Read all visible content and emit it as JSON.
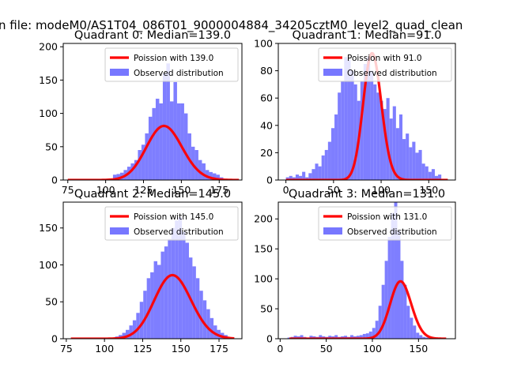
{
  "figure": {
    "suptitle": "n file: modeM0/AS1T04_086T01_9000004884_34205cztM0_level2_quad_clean"
  },
  "chart_data": [
    {
      "type": "bar",
      "title": "Quadrant 0: Median=139.0",
      "xlim": [
        72,
        190
      ],
      "ylim": [
        0,
        205
      ],
      "xticks": [
        75,
        100,
        125,
        150,
        175
      ],
      "yticks": [
        0,
        50,
        100,
        150,
        200
      ],
      "legend_position": "upper-right",
      "legend": [
        "Poission with 139.0",
        "Observed distribution"
      ],
      "hist": {
        "name": "Observed distribution",
        "color": "#7777ff",
        "bin_start": 102.5,
        "bin_width": 2.35,
        "counts": [
          2,
          8,
          9,
          11,
          15,
          20,
          25,
          30,
          45,
          53,
          70,
          95,
          108,
          122,
          115,
          160,
          175,
          118,
          147,
          115,
          115,
          100,
          70,
          50,
          45,
          30,
          25,
          15,
          12,
          10,
          8,
          4
        ]
      },
      "poisson": {
        "name": "Poission with 139.0",
        "color": "#ff0000",
        "mean": 139.0,
        "scale": 2400,
        "x_range": [
          75,
          188
        ]
      }
    },
    {
      "type": "bar",
      "title": "Quadrant 1: Median=91.0",
      "xlim": [
        -8,
        178
      ],
      "ylim": [
        0,
        100
      ],
      "xticks": [
        0,
        50,
        100,
        150
      ],
      "yticks": [
        0,
        20,
        40,
        60,
        80,
        100
      ],
      "legend_position": "upper-right",
      "legend": [
        "Poission with 91.0",
        "Observed distribution"
      ],
      "hist": {
        "name": "Observed distribution",
        "color": "#7777ff",
        "bin_start": 0,
        "bin_width": 3.4,
        "counts": [
          2,
          3,
          2,
          4,
          3,
          6,
          2,
          5,
          8,
          12,
          10,
          18,
          22,
          28,
          38,
          48,
          64,
          72,
          90,
          88,
          80,
          70,
          58,
          72,
          85,
          90,
          80,
          70,
          64,
          58,
          52,
          60,
          45,
          54,
          38,
          48,
          30,
          34,
          24,
          28,
          20,
          22,
          12,
          10,
          6,
          8,
          3,
          4
        ]
      },
      "poisson": {
        "name": "Poission with 91.0",
        "color": "#ff0000",
        "mean": 91.0,
        "scale": 2220,
        "x_range": [
          0,
          170
        ]
      }
    },
    {
      "type": "bar",
      "title": "Quadrant 2: Median=145.0",
      "xlim": [
        73,
        190
      ],
      "ylim": [
        0,
        185
      ],
      "xticks": [
        75,
        100,
        125,
        150,
        175
      ],
      "yticks": [
        0,
        50,
        100,
        150
      ],
      "legend_position": "upper-right",
      "legend": [
        "Poission with 145.0",
        "Observed distribution"
      ],
      "hist": {
        "name": "Observed distribution",
        "color": "#7777ff",
        "bin_start": 107,
        "bin_width": 2.3,
        "counts": [
          3,
          5,
          8,
          12,
          18,
          25,
          35,
          50,
          65,
          82,
          90,
          105,
          100,
          118,
          125,
          135,
          150,
          160,
          165,
          145,
          130,
          110,
          98,
          82,
          65,
          52,
          40,
          28,
          18,
          12,
          8,
          5
        ]
      },
      "poisson": {
        "name": "Poission with 145.0",
        "color": "#ff0000",
        "mean": 145.0,
        "scale": 2600,
        "x_range": [
          78,
          185
        ]
      }
    },
    {
      "type": "bar",
      "title": "Quadrant 3: Median=131.0",
      "xlim": [
        -2,
        190
      ],
      "ylim": [
        0,
        228
      ],
      "xticks": [
        0,
        50,
        100,
        150
      ],
      "yticks": [
        0,
        50,
        100,
        150,
        200
      ],
      "legend_position": "upper-right",
      "legend": [
        "Poission with 131.0",
        "Observed distribution"
      ],
      "hist": {
        "name": "Observed distribution",
        "color": "#7777ff",
        "bin_start": 8,
        "bin_width": 3.4,
        "counts": [
          2,
          3,
          5,
          4,
          6,
          3,
          2,
          5,
          4,
          3,
          6,
          4,
          3,
          5,
          4,
          6,
          3,
          4,
          5,
          3,
          6,
          4,
          5,
          6,
          8,
          9,
          12,
          18,
          30,
          55,
          90,
          130,
          170,
          210,
          230,
          180,
          130,
          90,
          55,
          35,
          22,
          10,
          6,
          3,
          2,
          1,
          0,
          0,
          0,
          0
        ]
      },
      "poisson": {
        "name": "Poission with 131.0",
        "color": "#ff0000",
        "mean": 131.0,
        "scale": 2750,
        "x_range": [
          10,
          180
        ]
      }
    }
  ]
}
